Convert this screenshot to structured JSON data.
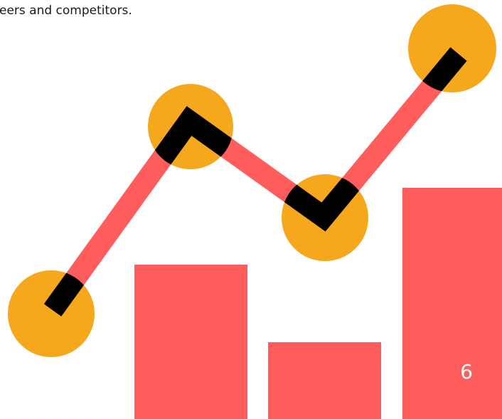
{
  "caption": "eers and competitors.",
  "page_number": "6"
}
